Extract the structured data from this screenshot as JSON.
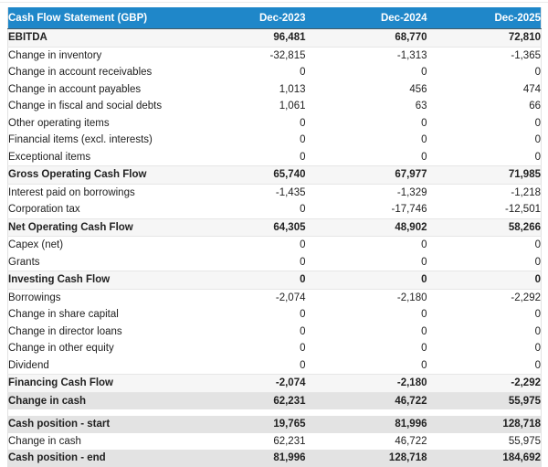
{
  "colors": {
    "header_bg": "#1f87c9",
    "header_text": "#ffffff",
    "section_row_bg": "#f6f6f6",
    "summary_row_bg": "#e3e3e3",
    "body_text": "#212121"
  },
  "table": {
    "header": {
      "label": "Cash Flow Statement (GBP)",
      "columns": [
        "Dec-2023",
        "Dec-2024",
        "Dec-2025"
      ]
    },
    "rows": [
      {
        "label": "EBITDA",
        "values": [
          "96,481",
          "68,770",
          "72,810"
        ],
        "style": "section"
      },
      {
        "label": "Change in inventory",
        "values": [
          "-32,815",
          "-1,313",
          "-1,365"
        ],
        "style": "normal"
      },
      {
        "label": "Change in account receivables",
        "values": [
          "0",
          "0",
          "0"
        ],
        "style": "normal"
      },
      {
        "label": "Change in account payables",
        "values": [
          "1,013",
          "456",
          "474"
        ],
        "style": "normal"
      },
      {
        "label": "Change in fiscal and social debts",
        "values": [
          "1,061",
          "63",
          "66"
        ],
        "style": "normal"
      },
      {
        "label": "Other operating items",
        "values": [
          "0",
          "0",
          "0"
        ],
        "style": "normal"
      },
      {
        "label": "Financial items (excl. interests)",
        "values": [
          "0",
          "0",
          "0"
        ],
        "style": "normal"
      },
      {
        "label": "Exceptional items",
        "values": [
          "0",
          "0",
          "0"
        ],
        "style": "normal"
      },
      {
        "label": "Gross Operating Cash Flow",
        "values": [
          "65,740",
          "67,977",
          "71,985"
        ],
        "style": "section"
      },
      {
        "label": "Interest paid on borrowings",
        "values": [
          "-1,435",
          "-1,329",
          "-1,218"
        ],
        "style": "normal"
      },
      {
        "label": "Corporation tax",
        "values": [
          "0",
          "-17,746",
          "-12,501"
        ],
        "style": "normal"
      },
      {
        "label": "Net Operating Cash Flow",
        "values": [
          "64,305",
          "48,902",
          "58,266"
        ],
        "style": "section"
      },
      {
        "label": "Capex (net)",
        "values": [
          "0",
          "0",
          "0"
        ],
        "style": "normal"
      },
      {
        "label": "Grants",
        "values": [
          "0",
          "0",
          "0"
        ],
        "style": "normal"
      },
      {
        "label": "Investing Cash Flow",
        "values": [
          "0",
          "0",
          "0"
        ],
        "style": "section"
      },
      {
        "label": "Borrowings",
        "values": [
          "-2,074",
          "-2,180",
          "-2,292"
        ],
        "style": "normal"
      },
      {
        "label": "Change in share capital",
        "values": [
          "0",
          "0",
          "0"
        ],
        "style": "normal"
      },
      {
        "label": "Change in director loans",
        "values": [
          "0",
          "0",
          "0"
        ],
        "style": "normal"
      },
      {
        "label": "Change in other equity",
        "values": [
          "0",
          "0",
          "0"
        ],
        "style": "normal"
      },
      {
        "label": "Dividend",
        "values": [
          "0",
          "0",
          "0"
        ],
        "style": "normal"
      },
      {
        "label": "Financing Cash Flow",
        "values": [
          "-2,074",
          "-2,180",
          "-2,292"
        ],
        "style": "section"
      },
      {
        "label": "Change in cash",
        "values": [
          "62,231",
          "46,722",
          "55,975"
        ],
        "style": "summary"
      },
      {
        "style": "spacer"
      },
      {
        "label": "Cash position - start",
        "values": [
          "19,765",
          "81,996",
          "128,718"
        ],
        "style": "summary"
      },
      {
        "label": "Change in cash",
        "values": [
          "62,231",
          "46,722",
          "55,975"
        ],
        "style": "normal"
      },
      {
        "label": "Cash position - end",
        "values": [
          "81,996",
          "128,718",
          "184,692"
        ],
        "style": "summary"
      }
    ]
  },
  "chart_data": {
    "type": "table",
    "title": "Cash Flow Statement (GBP)",
    "columns": [
      "Cash Flow Statement (GBP)",
      "Dec-2023",
      "Dec-2024",
      "Dec-2025"
    ],
    "rows": [
      [
        "EBITDA",
        96481,
        68770,
        72810
      ],
      [
        "Change in inventory",
        -32815,
        -1313,
        -1365
      ],
      [
        "Change in account receivables",
        0,
        0,
        0
      ],
      [
        "Change in account payables",
        1013,
        456,
        474
      ],
      [
        "Change in fiscal and social debts",
        1061,
        63,
        66
      ],
      [
        "Other operating items",
        0,
        0,
        0
      ],
      [
        "Financial items (excl. interests)",
        0,
        0,
        0
      ],
      [
        "Exceptional items",
        0,
        0,
        0
      ],
      [
        "Gross Operating Cash Flow",
        65740,
        67977,
        71985
      ],
      [
        "Interest paid on borrowings",
        -1435,
        -1329,
        -1218
      ],
      [
        "Corporation tax",
        0,
        -17746,
        -12501
      ],
      [
        "Net Operating Cash Flow",
        64305,
        48902,
        58266
      ],
      [
        "Capex (net)",
        0,
        0,
        0
      ],
      [
        "Grants",
        0,
        0,
        0
      ],
      [
        "Investing Cash Flow",
        0,
        0,
        0
      ],
      [
        "Borrowings",
        -2074,
        -2180,
        -2292
      ],
      [
        "Change in share capital",
        0,
        0,
        0
      ],
      [
        "Change in director loans",
        0,
        0,
        0
      ],
      [
        "Change in other equity",
        0,
        0,
        0
      ],
      [
        "Dividend",
        0,
        0,
        0
      ],
      [
        "Financing Cash Flow",
        -2074,
        -2180,
        -2292
      ],
      [
        "Change in cash",
        62231,
        46722,
        55975
      ],
      [
        "Cash position - start",
        19765,
        81996,
        128718
      ],
      [
        "Change in cash",
        62231,
        46722,
        55975
      ],
      [
        "Cash position - end",
        81996,
        128718,
        184692
      ]
    ]
  }
}
